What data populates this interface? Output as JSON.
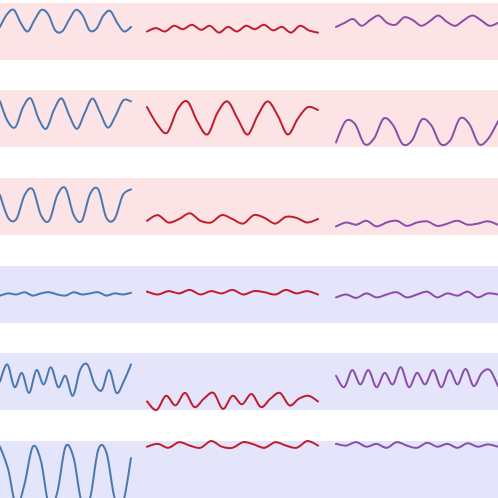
{
  "chart_data": {
    "type": "line",
    "grid": false,
    "legend": "none",
    "band_colors": {
      "pink": "#fbe3e6",
      "lavender": "#e4e4fb"
    },
    "column_colors": [
      "#4a78b0",
      "#c01e2e",
      "#8a4fa8"
    ],
    "rows": [
      {
        "band": "pink",
        "cells": [
          {
            "y": [
              0.42,
              0.2,
              0.12,
              0.35,
              0.5,
              0.3,
              0.12,
              0.2,
              0.48,
              0.5,
              0.3,
              0.12,
              0.22,
              0.48,
              0.45,
              0.22,
              0.14,
              0.35,
              0.5,
              0.42
            ]
          },
          {
            "y": [
              0.5,
              0.44,
              0.5,
              0.4,
              0.46,
              0.38,
              0.47,
              0.4,
              0.52,
              0.42,
              0.5,
              0.4,
              0.46,
              0.38,
              0.48,
              0.42,
              0.52,
              0.4,
              0.48,
              0.52
            ]
          },
          {
            "y": [
              0.42,
              0.35,
              0.28,
              0.4,
              0.3,
              0.22,
              0.35,
              0.38,
              0.25,
              0.3,
              0.4,
              0.32,
              0.22,
              0.33,
              0.4,
              0.3,
              0.22,
              0.3,
              0.4,
              0.35
            ]
          }
        ]
      },
      {
        "band": "pink",
        "cells": [
          {
            "y": [
              0.2,
              0.55,
              0.65,
              0.3,
              0.15,
              0.5,
              0.68,
              0.35,
              0.15,
              0.45,
              0.68,
              0.4,
              0.15,
              0.4,
              0.66,
              0.45,
              0.18,
              0.2
            ]
          },
          {
            "y": [
              0.3,
              0.6,
              0.75,
              0.35,
              0.2,
              0.55,
              0.78,
              0.4,
              0.2,
              0.5,
              0.78,
              0.45,
              0.2,
              0.45,
              0.78,
              0.5,
              0.3,
              0.35
            ]
          },
          {
            "y": [
              0.92,
              0.55,
              0.6,
              0.95,
              0.85,
              0.5,
              0.62,
              0.95,
              0.88,
              0.52,
              0.62,
              0.95,
              0.88,
              0.5,
              0.6,
              0.95,
              0.85,
              0.55
            ]
          }
        ]
      },
      {
        "band": "pink",
        "cells": [
          {
            "y": [
              0.3,
              0.7,
              0.72,
              0.3,
              0.2,
              0.65,
              0.75,
              0.3,
              0.18,
              0.65,
              0.75,
              0.28,
              0.2,
              0.7,
              0.72,
              0.3,
              0.2
            ]
          },
          {
            "y": [
              0.75,
              0.65,
              0.78,
              0.72,
              0.62,
              0.75,
              0.78,
              0.65,
              0.72,
              0.8,
              0.65,
              0.7,
              0.8,
              0.68,
              0.7,
              0.78,
              0.72
            ]
          },
          {
            "y": [
              0.85,
              0.78,
              0.82,
              0.75,
              0.85,
              0.78,
              0.75,
              0.84,
              0.78,
              0.76,
              0.84,
              0.8,
              0.75,
              0.82,
              0.8,
              0.76,
              0.82
            ]
          }
        ]
      },
      {
        "band": "lavender",
        "cells": [
          {
            "y": [
              0.52,
              0.48,
              0.5,
              0.46,
              0.52,
              0.48,
              0.46,
              0.5,
              0.52,
              0.46,
              0.5,
              0.48,
              0.46,
              0.52,
              0.48,
              0.5,
              0.47
            ]
          },
          {
            "y": [
              0.45,
              0.5,
              0.44,
              0.48,
              0.42,
              0.5,
              0.44,
              0.48,
              0.42,
              0.5,
              0.44,
              0.46,
              0.5,
              0.42,
              0.48,
              0.44,
              0.5
            ]
          },
          {
            "y": [
              0.55,
              0.5,
              0.56,
              0.48,
              0.55,
              0.5,
              0.46,
              0.55,
              0.5,
              0.45,
              0.55,
              0.48,
              0.52,
              0.45,
              0.55,
              0.48,
              0.5
            ]
          }
        ]
      },
      {
        "band": "lavender",
        "cells": [
          {
            "y": [
              0.5,
              0.2,
              0.6,
              0.35,
              0.7,
              0.3,
              0.55,
              0.25,
              0.6,
              0.4,
              0.75,
              0.3,
              0.2,
              0.55,
              0.65,
              0.3,
              0.7,
              0.5,
              0.2
            ]
          },
          {
            "y": [
              0.85,
              1.0,
              0.75,
              0.92,
              0.7,
              0.95,
              0.8,
              0.7,
              0.98,
              0.75,
              0.9,
              0.72,
              0.95,
              0.8,
              0.7,
              0.92,
              0.8,
              0.75,
              0.85
            ]
          },
          {
            "y": [
              0.4,
              0.6,
              0.3,
              0.55,
              0.3,
              0.6,
              0.35,
              0.55,
              0.25,
              0.6,
              0.35,
              0.55,
              0.3,
              0.6,
              0.3,
              0.55,
              0.28,
              0.58,
              0.35,
              0.3,
              0.58
            ]
          }
        ]
      },
      {
        "band": "lavender",
        "cells": [
          {
            "y": [
              0.1,
              0.5,
              1.15,
              0.75,
              0.1,
              0.35,
              1.15,
              0.9,
              0.1,
              0.3,
              1.1,
              1.0,
              0.15,
              0.2,
              1.0,
              1.1,
              0.3
            ]
          },
          {
            "y": [
              0.1,
              0.05,
              0.12,
              0.02,
              0.08,
              0.12,
              0.0,
              0.1,
              0.12,
              0.02,
              0.06,
              0.12,
              0.02,
              0.08,
              0.12,
              0.0,
              0.08
            ]
          },
          {
            "y": [
              0.05,
              0.08,
              0.02,
              0.1,
              0.05,
              0.12,
              0.02,
              0.08,
              0.12,
              0.03,
              0.1,
              0.05,
              0.12,
              0.04,
              0.1,
              0.06,
              0.1
            ]
          }
        ]
      }
    ]
  }
}
